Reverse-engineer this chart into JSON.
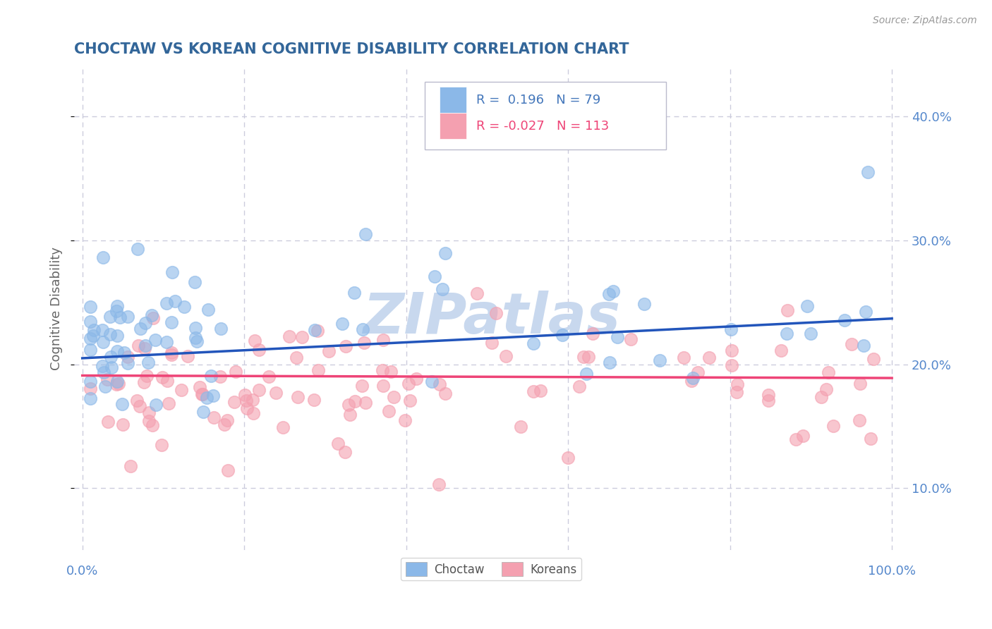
{
  "title": "CHOCTAW VS KOREAN COGNITIVE DISABILITY CORRELATION CHART",
  "source": "Source: ZipAtlas.com",
  "ylabel": "Cognitive Disability",
  "choctaw_R": 0.196,
  "choctaw_N": 79,
  "korean_R": -0.027,
  "korean_N": 113,
  "choctaw_color": "#8BB8E8",
  "korean_color": "#F4A0B0",
  "choctaw_line_color": "#2255BB",
  "korean_line_color": "#EE4477",
  "background_color": "#FFFFFF",
  "title_color": "#336699",
  "axis_label_color": "#666666",
  "tick_label_color": "#5588CC",
  "watermark_color": "#C8D8EE",
  "legend_color_choctaw": "#4477BB",
  "legend_color_korean": "#EE4477",
  "grid_color": "#CCCCDD",
  "ylim": [
    0.05,
    0.44
  ],
  "xlim": [
    -0.01,
    1.02
  ]
}
